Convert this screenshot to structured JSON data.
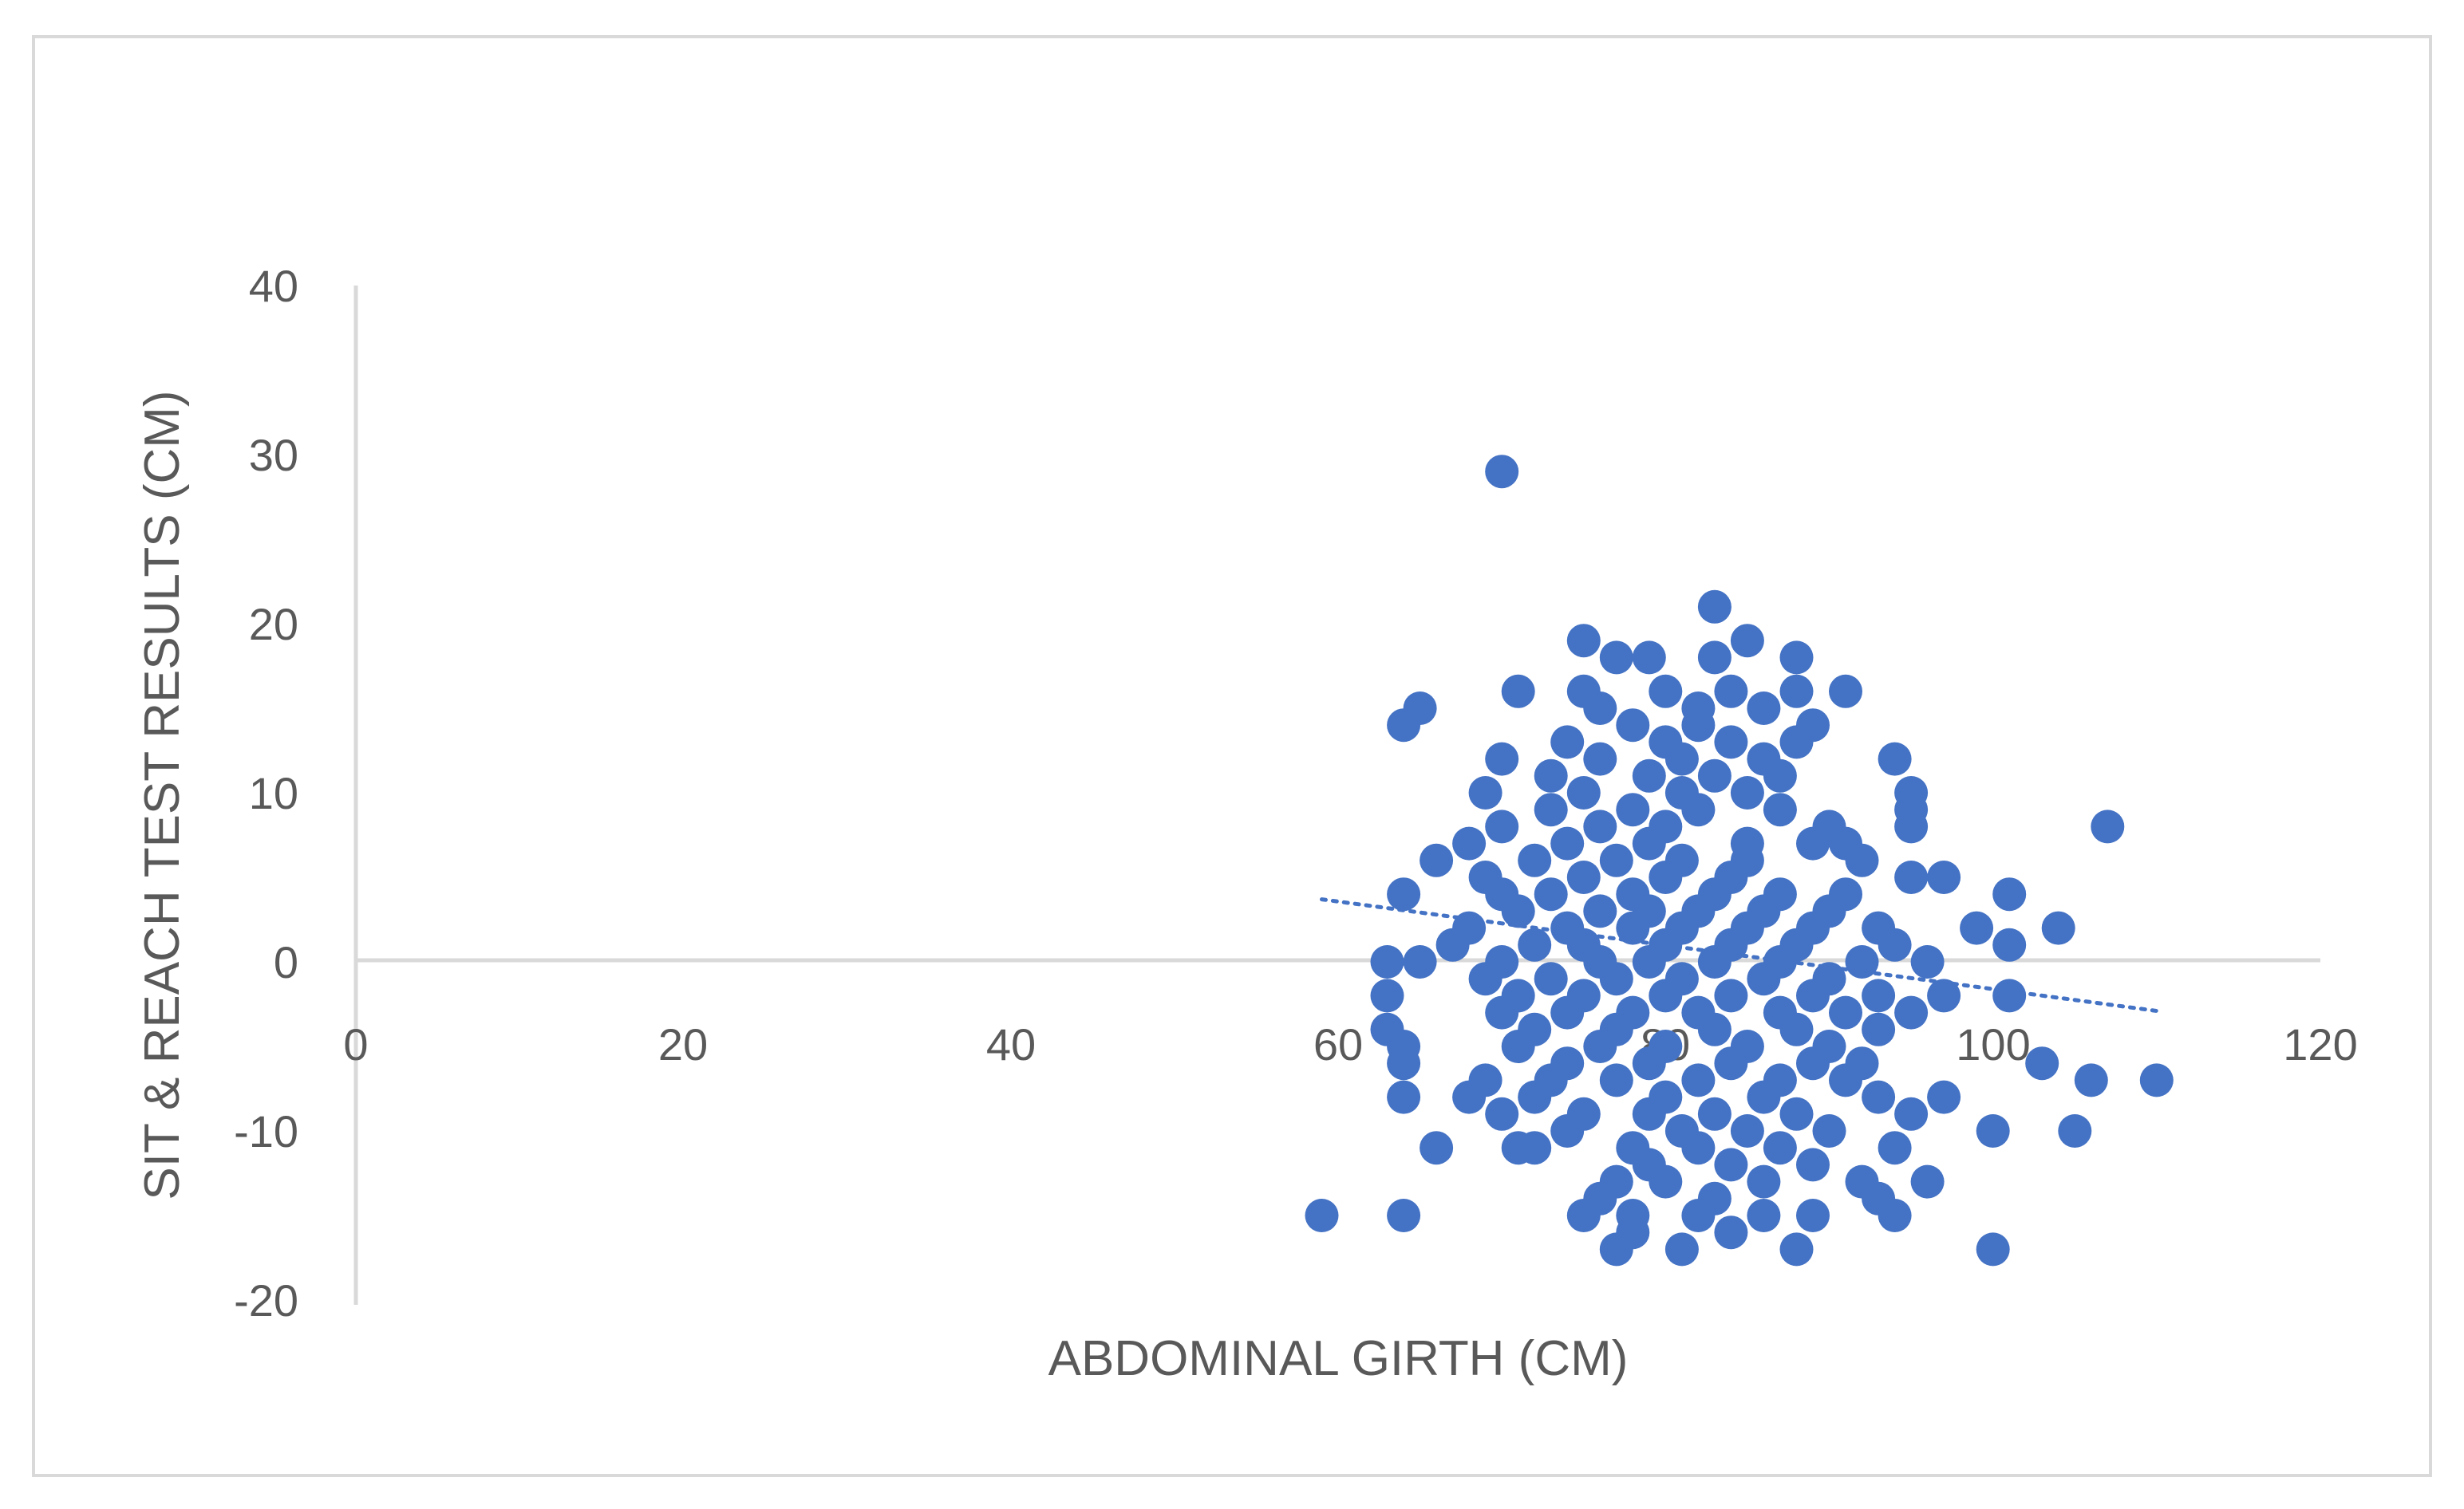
{
  "chart_data": {
    "type": "scatter",
    "title": "",
    "xlabel": "ABDOMINAL GIRTH (CM)",
    "ylabel": "SIT & REACH TEST RESULTS (CM)",
    "xlim": [
      0,
      120
    ],
    "ylim": [
      -20,
      40
    ],
    "x_ticks": [
      "0",
      "20",
      "40",
      "60",
      "80",
      "100",
      "120"
    ],
    "y_ticks": [
      "40",
      "30",
      "20",
      "10",
      "0",
      "-10",
      "-20"
    ],
    "grid": false,
    "legend": "none",
    "series": [
      {
        "marker_color": "#4472c4",
        "points": [
          [
            70,
            29
          ],
          [
            83,
            21
          ],
          [
            75,
            19
          ],
          [
            85,
            19
          ],
          [
            77,
            18
          ],
          [
            79,
            18
          ],
          [
            83,
            18
          ],
          [
            88,
            18
          ],
          [
            71,
            16
          ],
          [
            75,
            16
          ],
          [
            80,
            16
          ],
          [
            84,
            16
          ],
          [
            88,
            16
          ],
          [
            91,
            16
          ],
          [
            65,
            15
          ],
          [
            76,
            15
          ],
          [
            82,
            15
          ],
          [
            86,
            15
          ],
          [
            64,
            14
          ],
          [
            78,
            14
          ],
          [
            82,
            14
          ],
          [
            89,
            14
          ],
          [
            74,
            13
          ],
          [
            80,
            13
          ],
          [
            84,
            13
          ],
          [
            88,
            13
          ],
          [
            70,
            12
          ],
          [
            76,
            12
          ],
          [
            81,
            12
          ],
          [
            86,
            12
          ],
          [
            94,
            12
          ],
          [
            73,
            11
          ],
          [
            79,
            11
          ],
          [
            83,
            11
          ],
          [
            87,
            11
          ],
          [
            69,
            10
          ],
          [
            75,
            10
          ],
          [
            81,
            10
          ],
          [
            85,
            10
          ],
          [
            95,
            10
          ],
          [
            73,
            9
          ],
          [
            78,
            9
          ],
          [
            82,
            9
          ],
          [
            87,
            9
          ],
          [
            95,
            9
          ],
          [
            70,
            8
          ],
          [
            76,
            8
          ],
          [
            80,
            8
          ],
          [
            90,
            8
          ],
          [
            95,
            8
          ],
          [
            107,
            8
          ],
          [
            68,
            7
          ],
          [
            74,
            7
          ],
          [
            79,
            7
          ],
          [
            85,
            7
          ],
          [
            89,
            7
          ],
          [
            91,
            7
          ],
          [
            66,
            6
          ],
          [
            72,
            6
          ],
          [
            77,
            6
          ],
          [
            81,
            6
          ],
          [
            85,
            6
          ],
          [
            92,
            6
          ],
          [
            69,
            5
          ],
          [
            75,
            5
          ],
          [
            80,
            5
          ],
          [
            84,
            5
          ],
          [
            95,
            5
          ],
          [
            97,
            5
          ],
          [
            64,
            4
          ],
          [
            70,
            4
          ],
          [
            73,
            4
          ],
          [
            78,
            4
          ],
          [
            83,
            4
          ],
          [
            87,
            4
          ],
          [
            91,
            4
          ],
          [
            101,
            4
          ],
          [
            71,
            3
          ],
          [
            76,
            3
          ],
          [
            79,
            3
          ],
          [
            82,
            3
          ],
          [
            86,
            3
          ],
          [
            90,
            3
          ],
          [
            68,
            2
          ],
          [
            74,
            2
          ],
          [
            78,
            2
          ],
          [
            81,
            2
          ],
          [
            85,
            2
          ],
          [
            89,
            2
          ],
          [
            93,
            2
          ],
          [
            99,
            2
          ],
          [
            104,
            2
          ],
          [
            67,
            1
          ],
          [
            72,
            1
          ],
          [
            75,
            1
          ],
          [
            80,
            1
          ],
          [
            84,
            1
          ],
          [
            88,
            1
          ],
          [
            94,
            1
          ],
          [
            101,
            1
          ],
          [
            63,
            0
          ],
          [
            65,
            0
          ],
          [
            70,
            0
          ],
          [
            76,
            0
          ],
          [
            79,
            0
          ],
          [
            83,
            0
          ],
          [
            87,
            0
          ],
          [
            92,
            0
          ],
          [
            96,
            0
          ],
          [
            69,
            -1
          ],
          [
            73,
            -1
          ],
          [
            77,
            -1
          ],
          [
            81,
            -1
          ],
          [
            86,
            -1
          ],
          [
            90,
            -1
          ],
          [
            71,
            -2
          ],
          [
            75,
            -2
          ],
          [
            80,
            -2
          ],
          [
            84,
            -2
          ],
          [
            89,
            -2
          ],
          [
            93,
            -2
          ],
          [
            97,
            -2
          ],
          [
            101,
            -2
          ],
          [
            63,
            -2
          ],
          [
            70,
            -3
          ],
          [
            74,
            -3
          ],
          [
            78,
            -3
          ],
          [
            82,
            -3
          ],
          [
            87,
            -3
          ],
          [
            91,
            -3
          ],
          [
            95,
            -3
          ],
          [
            72,
            -4
          ],
          [
            77,
            -4
          ],
          [
            83,
            -4
          ],
          [
            88,
            -4
          ],
          [
            93,
            -4
          ],
          [
            63,
            -4
          ],
          [
            71,
            -5
          ],
          [
            76,
            -5
          ],
          [
            80,
            -5
          ],
          [
            85,
            -5
          ],
          [
            90,
            -5
          ],
          [
            64,
            -5
          ],
          [
            74,
            -6
          ],
          [
            79,
            -6
          ],
          [
            84,
            -6
          ],
          [
            89,
            -6
          ],
          [
            92,
            -6
          ],
          [
            64,
            -6
          ],
          [
            103,
            -6
          ],
          [
            69,
            -7
          ],
          [
            73,
            -7
          ],
          [
            77,
            -7
          ],
          [
            82,
            -7
          ],
          [
            87,
            -7
          ],
          [
            91,
            -7
          ],
          [
            106,
            -7
          ],
          [
            110,
            -7
          ],
          [
            68,
            -8
          ],
          [
            72,
            -8
          ],
          [
            80,
            -8
          ],
          [
            86,
            -8
          ],
          [
            93,
            -8
          ],
          [
            97,
            -8
          ],
          [
            64,
            -8
          ],
          [
            70,
            -9
          ],
          [
            75,
            -9
          ],
          [
            79,
            -9
          ],
          [
            83,
            -9
          ],
          [
            88,
            -9
          ],
          [
            95,
            -9
          ],
          [
            74,
            -10
          ],
          [
            81,
            -10
          ],
          [
            85,
            -10
          ],
          [
            90,
            -10
          ],
          [
            100,
            -10
          ],
          [
            105,
            -10
          ],
          [
            66,
            -11
          ],
          [
            71,
            -11
          ],
          [
            78,
            -11
          ],
          [
            82,
            -11
          ],
          [
            87,
            -11
          ],
          [
            94,
            -11
          ],
          [
            72,
            -11
          ],
          [
            79,
            -12
          ],
          [
            84,
            -12
          ],
          [
            89,
            -12
          ],
          [
            77,
            -13
          ],
          [
            80,
            -13
          ],
          [
            86,
            -13
          ],
          [
            92,
            -13
          ],
          [
            96,
            -13
          ],
          [
            76,
            -14
          ],
          [
            83,
            -14
          ],
          [
            93,
            -14
          ],
          [
            59,
            -15
          ],
          [
            64,
            -15
          ],
          [
            75,
            -15
          ],
          [
            78,
            -15
          ],
          [
            82,
            -15
          ],
          [
            86,
            -15
          ],
          [
            89,
            -15
          ],
          [
            94,
            -15
          ],
          [
            78,
            -16
          ],
          [
            84,
            -16
          ],
          [
            77,
            -17
          ],
          [
            81,
            -17
          ],
          [
            88,
            -17
          ],
          [
            100,
            -17
          ]
        ]
      }
    ],
    "trendline": {
      "style": "dotted",
      "color": "#4472c4",
      "x": [
        59,
        110
      ],
      "y": [
        3.7,
        -2.9
      ]
    }
  }
}
